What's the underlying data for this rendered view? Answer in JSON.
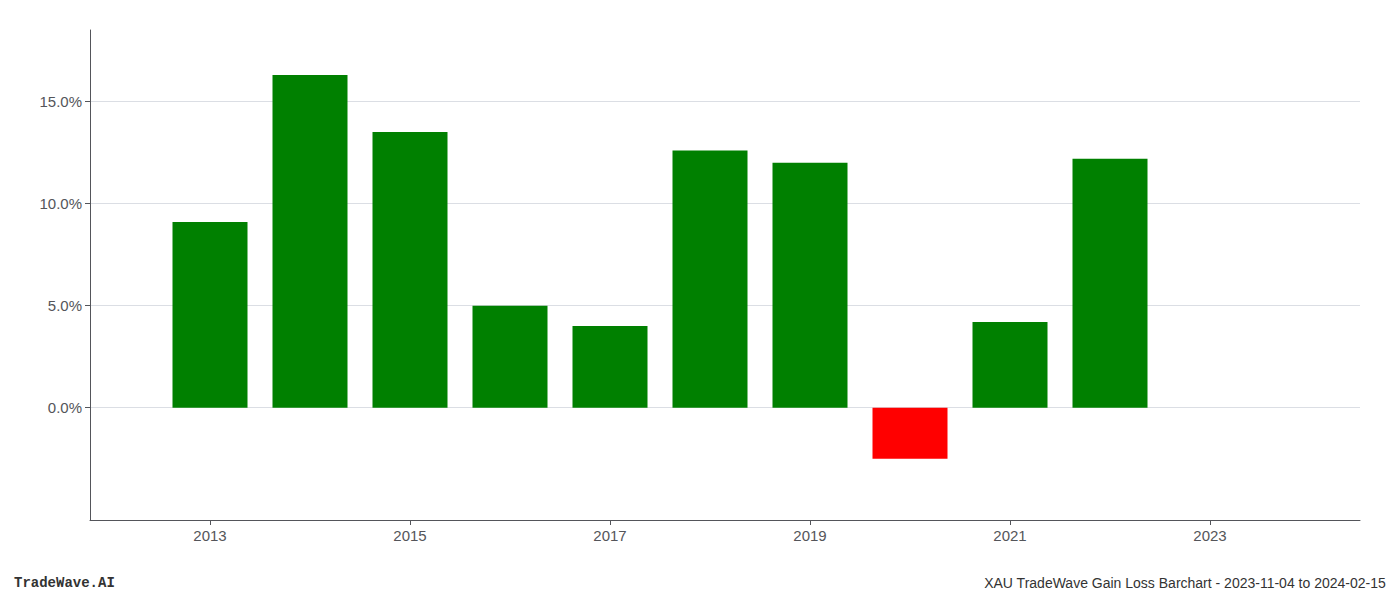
{
  "chart_data": {
    "type": "bar",
    "x": [
      2013,
      2014,
      2015,
      2016,
      2017,
      2018,
      2019,
      2020,
      2021,
      2022
    ],
    "values": [
      0.091,
      0.163,
      0.135,
      0.05,
      0.04,
      0.126,
      0.12,
      -0.025,
      0.042,
      0.122
    ],
    "colors": [
      "#008000",
      "#008000",
      "#008000",
      "#008000",
      "#008000",
      "#008000",
      "#008000",
      "#ff0000",
      "#008000",
      "#008000"
    ],
    "xlim": [
      2011.8,
      2024.5
    ],
    "xticks": [
      2013,
      2015,
      2017,
      2019,
      2021,
      2023
    ],
    "ylim": [
      -0.055,
      0.185
    ],
    "yticks": [
      {
        "value": 0.0,
        "label": "0.0%"
      },
      {
        "value": 0.05,
        "label": "5.0%"
      },
      {
        "value": 0.1,
        "label": "10.0%"
      },
      {
        "value": 0.15,
        "label": "15.0%"
      }
    ],
    "grid": true,
    "annotations": [
      "TradeWave.AI",
      "XAU TradeWave Gain Loss Barchart - 2023-11-04 to 2024-02-15"
    ]
  }
}
